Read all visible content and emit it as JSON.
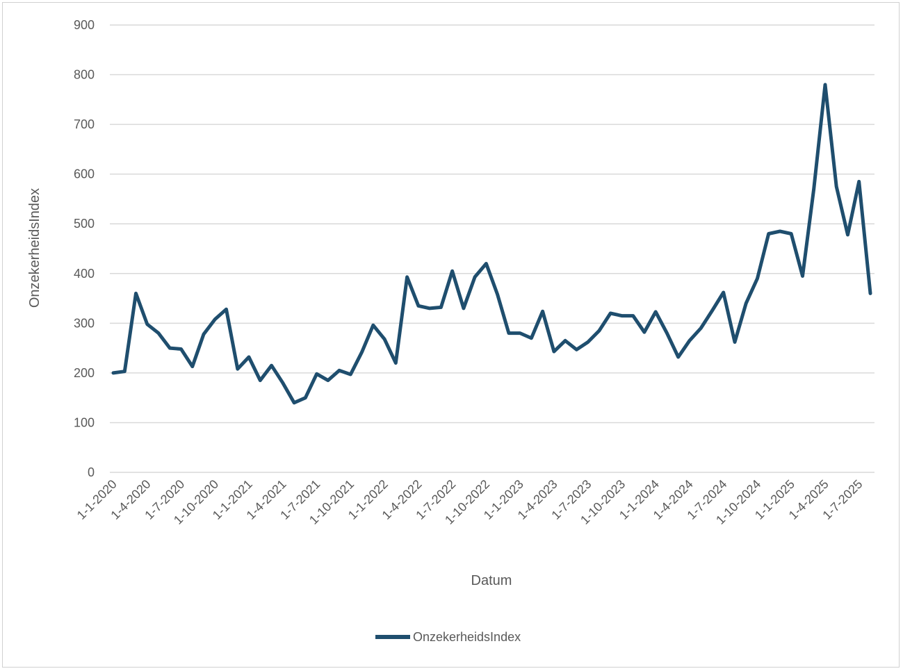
{
  "chart_data": {
    "type": "line",
    "xlabel": "Datum",
    "ylabel": "OnzekerheidsIndex",
    "ylim": [
      0,
      900
    ],
    "yticks": [
      0,
      100,
      200,
      300,
      400,
      500,
      600,
      700,
      800,
      900
    ],
    "xtick_labels": [
      "1-1-2020",
      "1-4-2020",
      "1-7-2020",
      "1-10-2020",
      "1-1-2021",
      "1-4-2021",
      "1-7-2021",
      "1-10-2021",
      "1-1-2022",
      "1-4-2022",
      "1-7-2022",
      "1-10-2022",
      "1-1-2023",
      "1-4-2023",
      "1-7-2023",
      "1-10-2023",
      "1-1-2024",
      "1-4-2024",
      "1-7-2024",
      "1-10-2024",
      "1-1-2025",
      "1-4-2025",
      "1-7-2025"
    ],
    "grid": true,
    "legend": "bottom",
    "line_color": "#1f4e6e",
    "series": [
      {
        "name": "OnzekerheidsIndex",
        "x": [
          "2020-01",
          "2020-02",
          "2020-03",
          "2020-04",
          "2020-05",
          "2020-06",
          "2020-07",
          "2020-08",
          "2020-09",
          "2020-10",
          "2020-11",
          "2020-12",
          "2021-01",
          "2021-02",
          "2021-03",
          "2021-04",
          "2021-05",
          "2021-06",
          "2021-07",
          "2021-08",
          "2021-09",
          "2021-10",
          "2021-11",
          "2021-12",
          "2022-01",
          "2022-02",
          "2022-03",
          "2022-04",
          "2022-05",
          "2022-06",
          "2022-07",
          "2022-08",
          "2022-09",
          "2022-10",
          "2022-11",
          "2022-12",
          "2023-01",
          "2023-02",
          "2023-03",
          "2023-04",
          "2023-05",
          "2023-06",
          "2023-07",
          "2023-08",
          "2023-09",
          "2023-10",
          "2023-11",
          "2023-12",
          "2024-01",
          "2024-02",
          "2024-03",
          "2024-04",
          "2024-05",
          "2024-06",
          "2024-07",
          "2024-08",
          "2024-09",
          "2024-10",
          "2024-11",
          "2024-12",
          "2025-01",
          "2025-02",
          "2025-03",
          "2025-04",
          "2025-05",
          "2025-06",
          "2025-07",
          "2025-08"
        ],
        "values": [
          200,
          203,
          360,
          298,
          280,
          250,
          248,
          213,
          278,
          308,
          328,
          208,
          232,
          185,
          215,
          180,
          140,
          150,
          198,
          185,
          205,
          197,
          242,
          296,
          268,
          220,
          393,
          335,
          330,
          332,
          405,
          330,
          393,
          420,
          358,
          280,
          280,
          270,
          324,
          243,
          265,
          247,
          262,
          285,
          320,
          315,
          315,
          282,
          323,
          280,
          232,
          265,
          290,
          325,
          362,
          262,
          340,
          390,
          480,
          485,
          480,
          395,
          570,
          780,
          575,
          478,
          585,
          360
        ]
      }
    ]
  }
}
